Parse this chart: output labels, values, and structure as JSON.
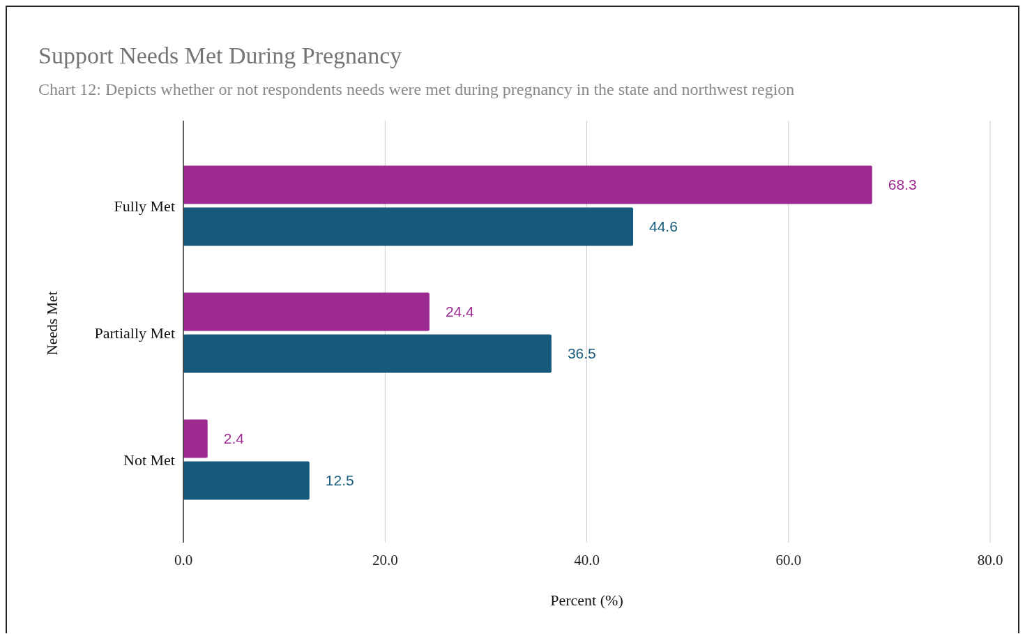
{
  "chart_data": {
    "type": "bar",
    "orientation": "horizontal",
    "title": "Support Needs Met During Pregnancy",
    "subtitle": "Chart 12: Depicts whether or not respondents needs were met during pregnancy in the state and northwest region",
    "xlabel": "Percent (%)",
    "ylabel": "Needs Met",
    "categories": [
      "Fully Met",
      "Partially Met",
      "Not Met"
    ],
    "series": [
      {
        "color": "#9c2a8f",
        "values": [
          68.3,
          24.4,
          2.4
        ]
      },
      {
        "color": "#155a7c",
        "values": [
          44.6,
          36.5,
          12.5
        ]
      }
    ],
    "xlim": [
      0,
      80
    ],
    "xticks": [
      {
        "value": 0,
        "label": "0.0"
      },
      {
        "value": 20,
        "label": "20.0"
      },
      {
        "value": 40,
        "label": "40.0"
      },
      {
        "value": 60,
        "label": "60.0"
      },
      {
        "value": 80,
        "label": "80.0"
      }
    ],
    "grid": "x",
    "data_labels": true
  }
}
